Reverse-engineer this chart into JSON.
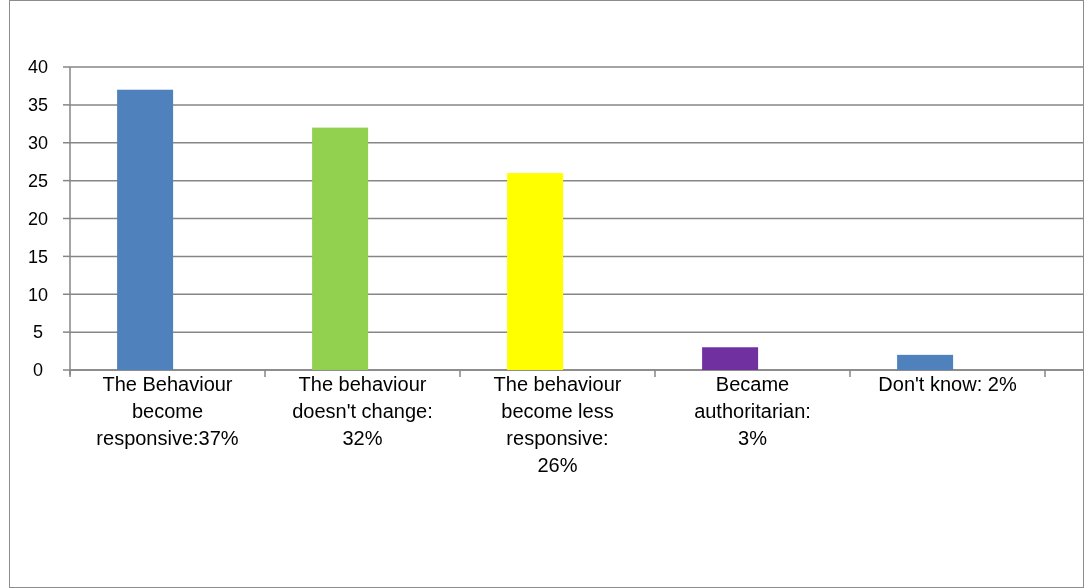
{
  "chart_data": {
    "type": "bar",
    "categories": [
      "The Behaviour become responsive:37%",
      "The behaviour doesn't change: 32%",
      "The behaviour become less responsive: 26%",
      "Became authoritarian: 3%",
      "Don't know: 2%"
    ],
    "values": [
      37,
      32,
      26,
      3,
      2
    ],
    "colors": [
      "#4f81bd",
      "#92d050",
      "#ffff00",
      "#7030a0",
      "#4f81bd"
    ],
    "ylim": [
      0,
      40
    ],
    "yticks": [
      0,
      5,
      10,
      15,
      20,
      25,
      30,
      35,
      40
    ],
    "grid": "y"
  }
}
